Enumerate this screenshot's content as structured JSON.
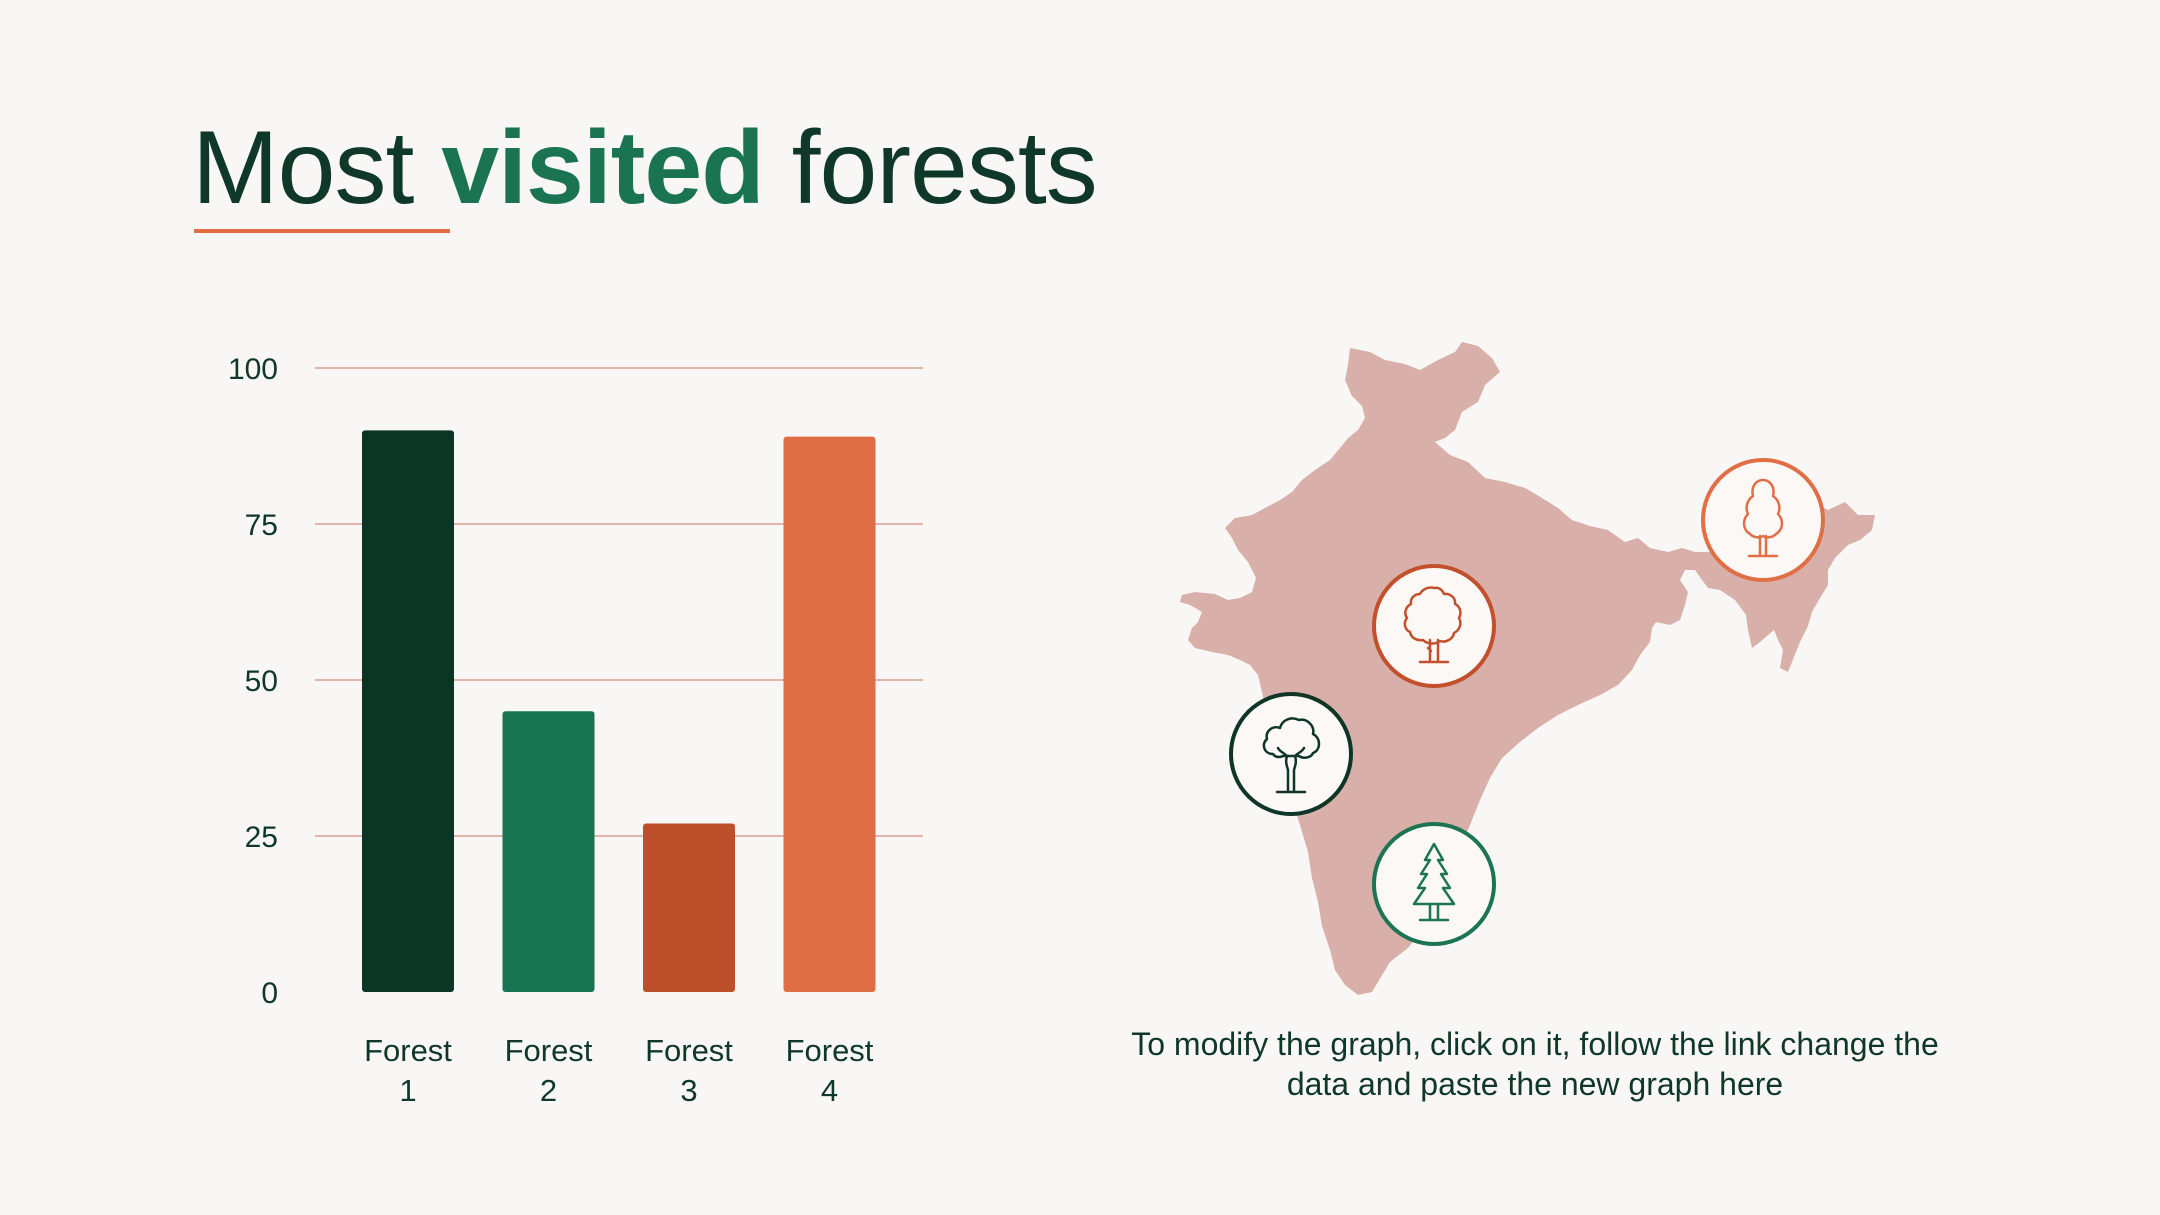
{
  "title": {
    "pre": "Most ",
    "accent": "visited",
    "post": " forests"
  },
  "colors": {
    "grid": "#e1b5ac",
    "text": "#10382a",
    "map": "#d8b0a9"
  },
  "chart_data": {
    "type": "bar",
    "categories": [
      [
        "Forest",
        "1"
      ],
      [
        "Forest",
        "2"
      ],
      [
        "Forest",
        "3"
      ],
      [
        "Forest",
        "4"
      ]
    ],
    "values": [
      90,
      45,
      27,
      89
    ],
    "colors": [
      "#0b3626",
      "#187353",
      "#be4f2b",
      "#df6e45"
    ],
    "ylim": [
      0,
      100
    ],
    "yticks": [
      0,
      25,
      50,
      75,
      100
    ],
    "grid": true
  },
  "map": {
    "icons": [
      {
        "name": "round-tree-icon",
        "color": "#c2502d"
      },
      {
        "name": "oak-tree-icon",
        "color": "#0e3525"
      },
      {
        "name": "pine-tree-icon",
        "color": "#1d7452"
      },
      {
        "name": "poplar-tree-icon",
        "color": "#e06f45"
      }
    ]
  },
  "note": "To modify the graph, click on it, follow the link change the data and paste the new graph here"
}
